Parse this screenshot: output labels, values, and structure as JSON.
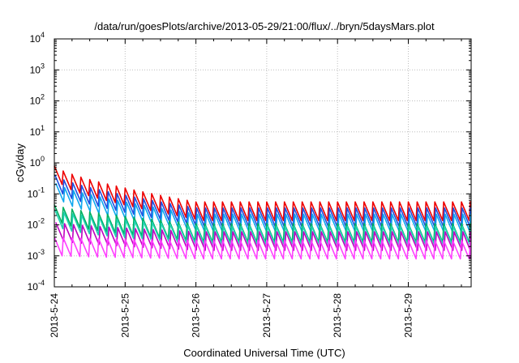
{
  "chart_data": {
    "type": "line",
    "title": "/data/run/goesPlots/archive/2013-05-29/21:00/flux/../bryn/5daysMars.plot",
    "xlabel": "Coordinated Universal Time (UTC)",
    "ylabel": "cGy/day",
    "y_scale": "log",
    "ylim": [
      0.0001,
      10000
    ],
    "y_ticks": [
      {
        "base": "10",
        "exp": "-4",
        "value": 0.0001
      },
      {
        "base": "10",
        "exp": "-3",
        "value": 0.001
      },
      {
        "base": "10",
        "exp": "-2",
        "value": 0.01
      },
      {
        "base": "10",
        "exp": "-1",
        "value": 0.1
      },
      {
        "base": "10",
        "exp": "0",
        "value": 1
      },
      {
        "base": "10",
        "exp": "1",
        "value": 10
      },
      {
        "base": "10",
        "exp": "2",
        "value": 100
      },
      {
        "base": "10",
        "exp": "3",
        "value": 1000
      },
      {
        "base": "10",
        "exp": "4",
        "value": 10000
      }
    ],
    "xlim": [
      "2013-05-24 00:00",
      "2013-05-29 21:00"
    ],
    "x_ticks": [
      "2013-5-24",
      "2013-5-25",
      "2013-5-26",
      "2013-5-27",
      "2013-5-28",
      "2013-5-29"
    ],
    "grid": true,
    "pattern": "sawtooth, period 3 h, peak to trough ratio about 4",
    "series": [
      {
        "color": "#ee0000",
        "peak_start": 0.8,
        "peak_end": 0.055
      },
      {
        "color": "#1f4fe0",
        "peak_start": 0.4,
        "peak_end": 0.035
      },
      {
        "color": "#10a8ee",
        "peak_start": 0.22,
        "peak_end": 0.022
      },
      {
        "color": "#00b060",
        "peak_start": 0.045,
        "peak_end": 0.011
      },
      {
        "color": "#20d0b0",
        "peak_start": 0.03,
        "peak_end": 0.009
      },
      {
        "color": "#c000c0",
        "peak_start": 0.012,
        "peak_end": 0.006
      },
      {
        "color": "#ff40ff",
        "peak_start": 0.004,
        "peak_end": 0.0032
      }
    ]
  }
}
